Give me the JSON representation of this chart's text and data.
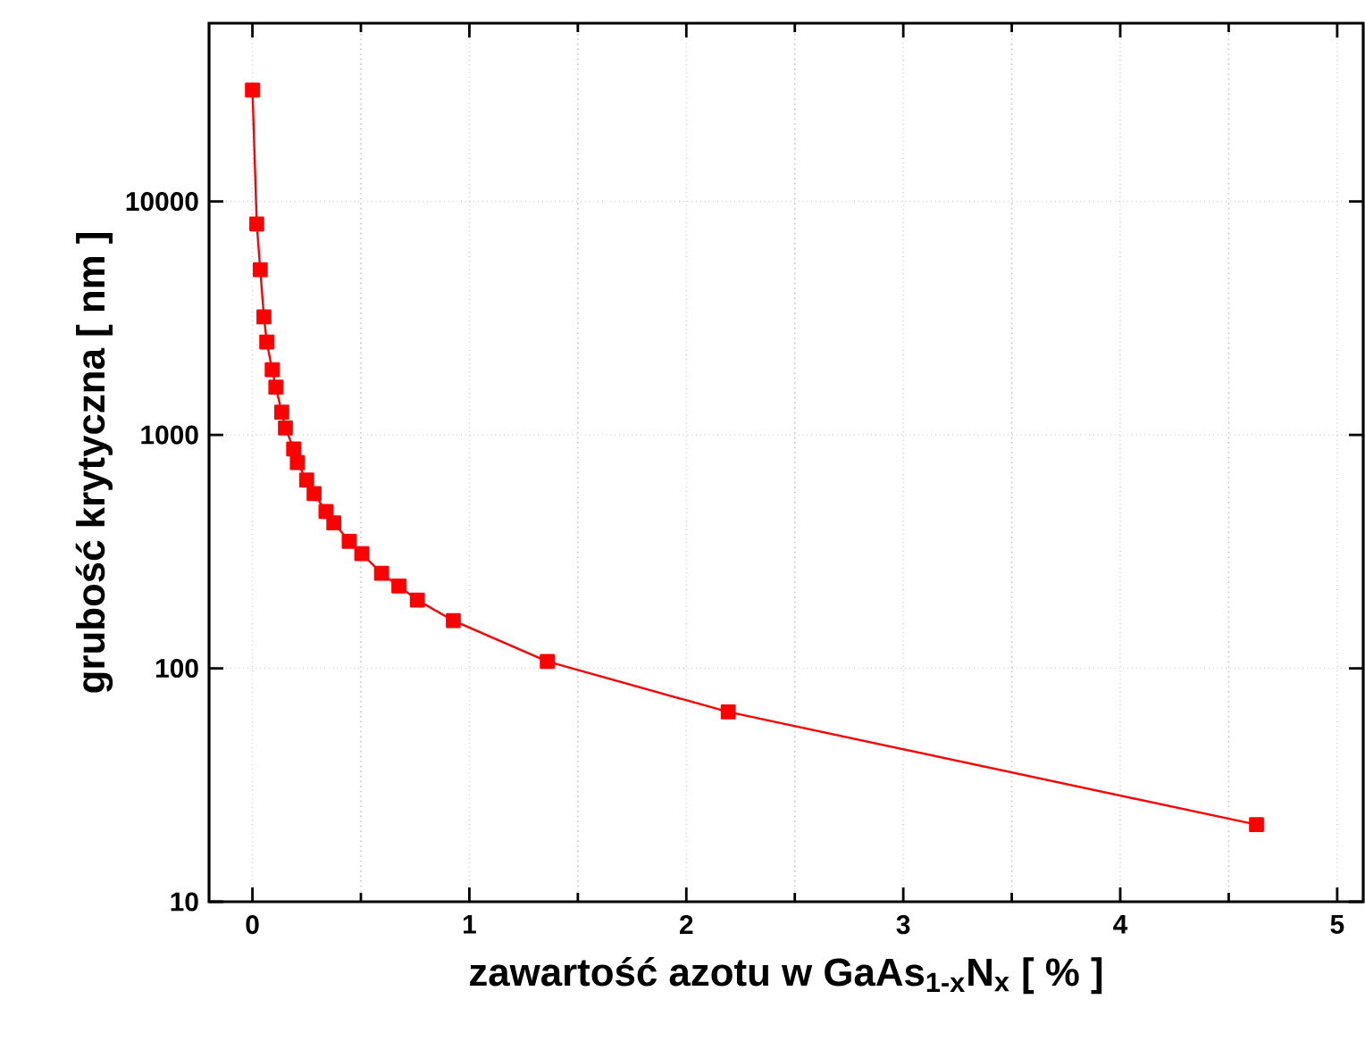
{
  "chart_data": {
    "type": "line",
    "xlabel": "zawartość azotu w GaAs$_{1-x}$N$_{x}$  [ % ]",
    "ylabel": "grubość krytyczna  [ nm ]",
    "x": [
      0,
      0.02,
      0.036,
      0.053,
      0.066,
      0.091,
      0.108,
      0.135,
      0.152,
      0.19,
      0.207,
      0.25,
      0.284,
      0.339,
      0.375,
      0.446,
      0.504,
      0.595,
      0.675,
      0.76,
      0.926,
      1.359,
      2.193,
      4.628
    ],
    "series": [
      {
        "color": "#ff0000",
        "values": [
          30000,
          8000,
          5100,
          3200,
          2500,
          1900,
          1600,
          1250,
          1070,
          870,
          760,
          640,
          560,
          470,
          420,
          350,
          310,
          255,
          225,
          196,
          160,
          107,
          65,
          21.4
        ]
      }
    ],
    "xlim": [
      -0.2,
      5.12
    ],
    "ylim": [
      10,
      58000
    ],
    "xticks": [
      0,
      1,
      2,
      3,
      4,
      5
    ],
    "yticks": [
      10,
      100,
      1000,
      10000
    ],
    "log": "y",
    "grid": true,
    "marker": "square",
    "line_style": "solid"
  }
}
